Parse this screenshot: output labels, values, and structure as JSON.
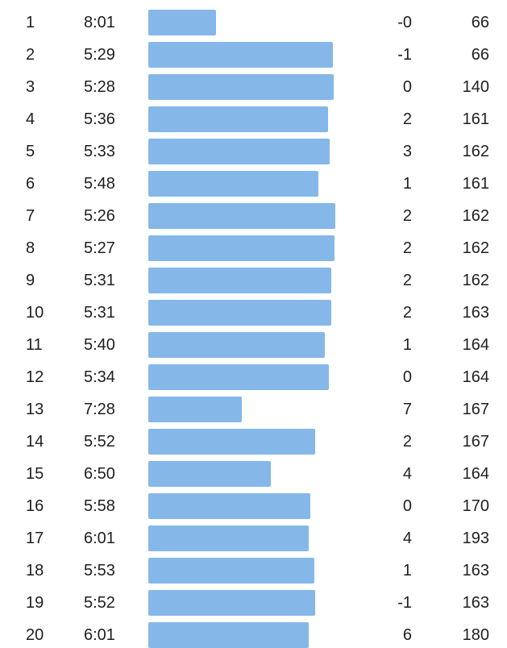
{
  "chart_data": {
    "type": "bar",
    "orientation": "horizontal",
    "bar_color": "#85b8e8",
    "rows": [
      {
        "mile": "1",
        "pace": "8:01",
        "pace_seconds": 481,
        "elevation": "-0",
        "heart_rate": "66"
      },
      {
        "mile": "2",
        "pace": "5:29",
        "pace_seconds": 329,
        "elevation": "-1",
        "heart_rate": "66"
      },
      {
        "mile": "3",
        "pace": "5:28",
        "pace_seconds": 328,
        "elevation": "0",
        "heart_rate": "140"
      },
      {
        "mile": "4",
        "pace": "5:36",
        "pace_seconds": 336,
        "elevation": "2",
        "heart_rate": "161"
      },
      {
        "mile": "5",
        "pace": "5:33",
        "pace_seconds": 333,
        "elevation": "3",
        "heart_rate": "162"
      },
      {
        "mile": "6",
        "pace": "5:48",
        "pace_seconds": 348,
        "elevation": "1",
        "heart_rate": "161"
      },
      {
        "mile": "7",
        "pace": "5:26",
        "pace_seconds": 326,
        "elevation": "2",
        "heart_rate": "162"
      },
      {
        "mile": "8",
        "pace": "5:27",
        "pace_seconds": 327,
        "elevation": "2",
        "heart_rate": "162"
      },
      {
        "mile": "9",
        "pace": "5:31",
        "pace_seconds": 331,
        "elevation": "2",
        "heart_rate": "162"
      },
      {
        "mile": "10",
        "pace": "5:31",
        "pace_seconds": 331,
        "elevation": "2",
        "heart_rate": "163"
      },
      {
        "mile": "11",
        "pace": "5:40",
        "pace_seconds": 340,
        "elevation": "1",
        "heart_rate": "164"
      },
      {
        "mile": "12",
        "pace": "5:34",
        "pace_seconds": 334,
        "elevation": "0",
        "heart_rate": "164"
      },
      {
        "mile": "13",
        "pace": "7:28",
        "pace_seconds": 448,
        "elevation": "7",
        "heart_rate": "167"
      },
      {
        "mile": "14",
        "pace": "5:52",
        "pace_seconds": 352,
        "elevation": "2",
        "heart_rate": "167"
      },
      {
        "mile": "15",
        "pace": "6:50",
        "pace_seconds": 410,
        "elevation": "4",
        "heart_rate": "164"
      },
      {
        "mile": "16",
        "pace": "5:58",
        "pace_seconds": 358,
        "elevation": "0",
        "heart_rate": "170"
      },
      {
        "mile": "17",
        "pace": "6:01",
        "pace_seconds": 361,
        "elevation": "4",
        "heart_rate": "193"
      },
      {
        "mile": "18",
        "pace": "5:53",
        "pace_seconds": 353,
        "elevation": "1",
        "heart_rate": "163"
      },
      {
        "mile": "19",
        "pace": "5:52",
        "pace_seconds": 352,
        "elevation": "-1",
        "heart_rate": "163"
      },
      {
        "mile": "20",
        "pace": "6:01",
        "pace_seconds": 361,
        "elevation": "6",
        "heart_rate": "180"
      }
    ]
  }
}
